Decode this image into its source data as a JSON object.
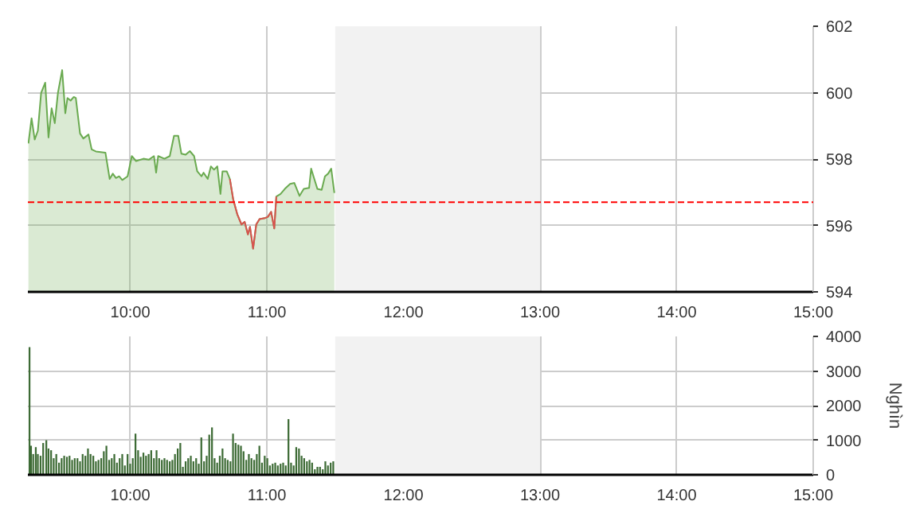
{
  "chart_data": [
    {
      "type": "area",
      "xlim": [
        9.25,
        15
      ],
      "ylim": [
        594,
        602
      ],
      "grid": true,
      "xticks": [
        {
          "value": 10,
          "label": "10:00"
        },
        {
          "value": 11,
          "label": "11:00"
        },
        {
          "value": 12,
          "label": "12:00"
        },
        {
          "value": 13,
          "label": "13:00"
        },
        {
          "value": 14,
          "label": "14:00"
        },
        {
          "value": 15,
          "label": "15:00"
        }
      ],
      "yticks": [
        594,
        596,
        598,
        600,
        602
      ],
      "ref_lines": [
        {
          "axis": "y",
          "value": 596.7,
          "color": "#ff0000",
          "line_style": "dashed"
        }
      ],
      "bands": [
        {
          "axis": "x",
          "from": 11.5,
          "to": 13,
          "color": "#f2f2f2"
        }
      ],
      "series": [
        {
          "color": "#6aaa50",
          "x": [
            9.254,
            9.277,
            9.3,
            9.323,
            9.347,
            9.377,
            9.401,
            9.424,
            9.447,
            9.47,
            9.501,
            9.524,
            9.54,
            9.563,
            9.586,
            9.601,
            9.632,
            9.656,
            9.694,
            9.717,
            9.748,
            9.818,
            9.849,
            9.872,
            9.895,
            9.918,
            9.941,
            9.98,
            10.011,
            10.042,
            10.096,
            10.135,
            10.173,
            10.189,
            10.204,
            10.25,
            10.289,
            10.32,
            10.351,
            10.374,
            10.405,
            10.436,
            10.467,
            10.49,
            10.521,
            10.536,
            10.567,
            10.59,
            10.613,
            10.637,
            10.66,
            10.675,
            10.706,
            10.729,
            10.753,
            10.783,
            10.814,
            10.837,
            10.861,
            10.876,
            10.899,
            10.922,
            10.946,
            10.984,
            11.007,
            11.031,
            11.054,
            11.069,
            11.1,
            11.131,
            11.17,
            11.201,
            11.239,
            11.27,
            11.309,
            11.324,
            11.347,
            11.37,
            11.401,
            11.425,
            11.448,
            11.471,
            11.494
          ],
          "values": [
            598.47,
            599.23,
            598.59,
            598.85,
            599.99,
            600.3,
            598.65,
            599.53,
            599.08,
            599.99,
            600.68,
            599.38,
            599.84,
            599.76,
            599.87,
            599.84,
            598.77,
            598.62,
            598.74,
            598.29,
            598.23,
            598.19,
            597.4,
            597.56,
            597.43,
            597.48,
            597.37,
            597.48,
            598.09,
            597.94,
            598.01,
            597.98,
            598.09,
            597.59,
            598.09,
            598.01,
            598.09,
            598.7,
            598.7,
            598.16,
            598.13,
            598.24,
            598.09,
            597.63,
            597.48,
            597.59,
            597.4,
            597.78,
            597.68,
            597.78,
            596.95,
            597.63,
            597.63,
            597.4,
            596.79,
            596.34,
            596.03,
            596.11,
            595.73,
            595.96,
            595.3,
            596.03,
            596.19,
            596.22,
            596.26,
            596.41,
            595.91,
            596.87,
            596.95,
            597.1,
            597.25,
            597.28,
            596.89,
            597.1,
            597.13,
            597.71,
            597.4,
            597.1,
            597.07,
            597.48,
            597.56,
            597.71,
            596.98
          ]
        },
        {
          "type": "line",
          "color": "#d9534f",
          "x": [
            10.729,
            10.753,
            10.783,
            10.814,
            10.837,
            10.861,
            10.876,
            10.899,
            10.922,
            10.946,
            10.984,
            11.007,
            11.031,
            11.054,
            11.069
          ],
          "values": [
            597.4,
            596.79,
            596.34,
            596.03,
            596.11,
            595.73,
            595.96,
            595.3,
            596.03,
            596.19,
            596.22,
            596.26,
            596.41,
            595.91,
            596.87
          ]
        }
      ]
    },
    {
      "type": "bar",
      "xlim": [
        9.25,
        15
      ],
      "ylim": [
        0,
        4000
      ],
      "grid": true,
      "ylabel": "Nghìn",
      "xticks": [
        {
          "value": 10,
          "label": "10:00"
        },
        {
          "value": 11,
          "label": "11:00"
        },
        {
          "value": 12,
          "label": "12:00"
        },
        {
          "value": 13,
          "label": "13:00"
        },
        {
          "value": 14,
          "label": "14:00"
        },
        {
          "value": 15,
          "label": "15:00"
        }
      ],
      "yticks": [
        0,
        1000,
        2000,
        3000,
        4000
      ],
      "bands": [
        {
          "axis": "x",
          "from": 11.5,
          "to": 13,
          "color": "#f2f2f2"
        }
      ],
      "series": [
        {
          "color": "#3d6b35",
          "x": [
            9.262,
            9.273,
            9.289,
            9.308,
            9.323,
            9.343,
            9.362,
            9.385,
            9.401,
            9.42,
            9.439,
            9.458,
            9.478,
            9.497,
            9.516,
            9.536,
            9.555,
            9.574,
            9.593,
            9.613,
            9.632,
            9.651,
            9.671,
            9.69,
            9.709,
            9.729,
            9.748,
            9.767,
            9.787,
            9.806,
            9.825,
            9.845,
            9.864,
            9.883,
            9.902,
            9.922,
            9.941,
            9.96,
            9.98,
            9.999,
            10.018,
            10.038,
            10.057,
            10.076,
            10.096,
            10.115,
            10.134,
            10.153,
            10.173,
            10.192,
            10.211,
            10.231,
            10.25,
            10.269,
            10.289,
            10.308,
            10.327,
            10.347,
            10.366,
            10.385,
            10.405,
            10.424,
            10.443,
            10.462,
            10.482,
            10.501,
            10.52,
            10.54,
            10.559,
            10.578,
            10.598,
            10.617,
            10.636,
            10.655,
            10.675,
            10.694,
            10.713,
            10.733,
            10.752,
            10.771,
            10.791,
            10.81,
            10.829,
            10.849,
            10.868,
            10.887,
            10.907,
            10.926,
            10.945,
            10.964,
            10.984,
            11.003,
            11.022,
            11.042,
            11.061,
            11.08,
            11.1,
            11.119,
            11.138,
            11.158,
            11.177,
            11.196,
            11.215,
            11.235,
            11.254,
            11.273,
            11.293,
            11.312,
            11.331,
            11.351,
            11.37,
            11.389,
            11.409,
            11.428,
            11.447,
            11.467,
            11.486
          ],
          "values": [
            3690,
            840,
            600,
            800,
            600,
            550,
            920,
            1000,
            760,
            710,
            480,
            600,
            350,
            480,
            550,
            520,
            550,
            430,
            480,
            480,
            390,
            600,
            550,
            760,
            600,
            550,
            390,
            430,
            480,
            680,
            840,
            430,
            480,
            600,
            350,
            480,
            600,
            270,
            600,
            320,
            480,
            1190,
            710,
            520,
            640,
            550,
            600,
            710,
            480,
            710,
            480,
            430,
            480,
            430,
            390,
            430,
            600,
            760,
            920,
            230,
            390,
            480,
            550,
            390,
            480,
            320,
            1080,
            390,
            550,
            1160,
            1370,
            480,
            350,
            550,
            760,
            480,
            430,
            390,
            1190,
            920,
            870,
            840,
            680,
            430,
            600,
            480,
            430,
            600,
            840,
            350,
            550,
            480,
            270,
            320,
            350,
            270,
            320,
            350,
            270,
            1610,
            350,
            270,
            800,
            760,
            550,
            480,
            390,
            430,
            350,
            160,
            230,
            230,
            160,
            390,
            270,
            350,
            390
          ]
        }
      ]
    }
  ]
}
